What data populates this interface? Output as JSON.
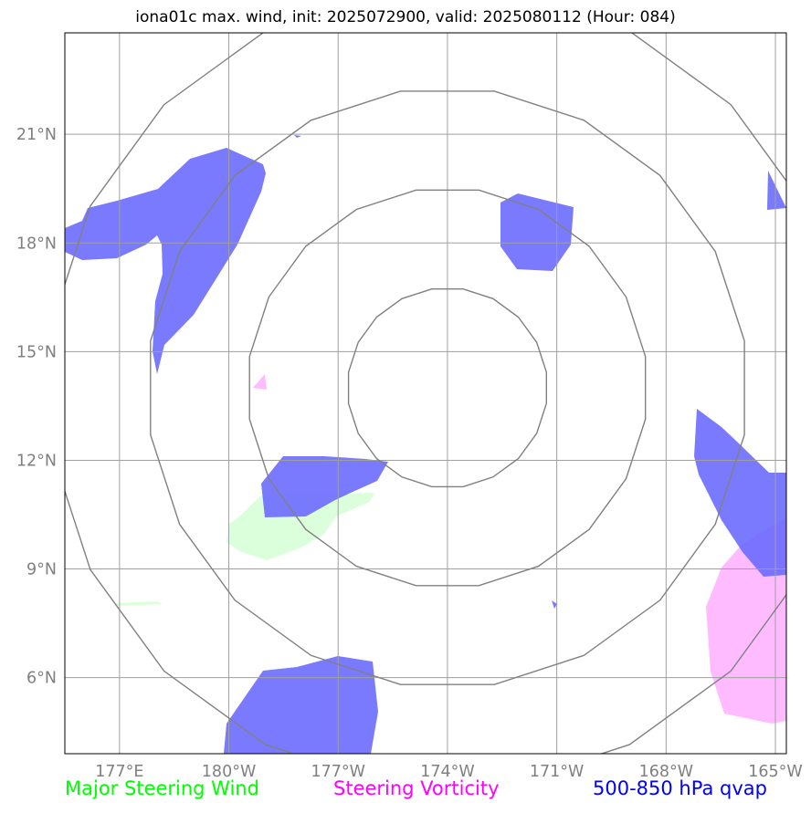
{
  "title": "iona01c max. wind, init: 2025072900, valid: 2025080112 (Hour: 084)",
  "map": {
    "projection": "lat-lon",
    "lon_ticks": [
      {
        "label": "177°E",
        "lon": 177
      },
      {
        "label": "180°W",
        "lon": 180
      },
      {
        "label": "177°W",
        "lon": 183
      },
      {
        "label": "174°W",
        "lon": 186
      },
      {
        "label": "171°W",
        "lon": 189
      },
      {
        "label": "168°W",
        "lon": 192
      },
      {
        "label": "165°W",
        "lon": 195
      }
    ],
    "lat_ticks": [
      {
        "label": "6°N",
        "lat": 6
      },
      {
        "label": "9°N",
        "lat": 9
      },
      {
        "label": "12°N",
        "lat": 12
      },
      {
        "label": "15°N",
        "lat": 15
      },
      {
        "label": "18°N",
        "lat": 18
      },
      {
        "label": "21°N",
        "lat": 21
      }
    ],
    "extent": {
      "lon_min": 175.5,
      "lon_max": 195.3,
      "lat_min": 3.9,
      "lat_max": 23.8
    },
    "gridlines": true,
    "range_ring_color": "#808080",
    "range_ring_center": {
      "lon": 186,
      "lat": 14
    },
    "range_ring_radii_deg": [
      2.75,
      5.5,
      8.25,
      11
    ]
  },
  "layers": {
    "qvap": {
      "color": "#6c6cff",
      "opacity": 0.9
    },
    "vorticity": {
      "color": "#ffaaff",
      "opacity": 0.8
    },
    "wind": {
      "color": "#ccffcc",
      "opacity": 0.7
    }
  },
  "legend": {
    "wind": "Major Steering Wind",
    "vorticity": "Steering Vorticity",
    "qvap": "500-850 hPa qvap"
  },
  "colors": {
    "wind": "#00ff00",
    "vorticity": "#ff00ff",
    "qvap": "#0000ff",
    "grid": "#a0a0a0"
  }
}
